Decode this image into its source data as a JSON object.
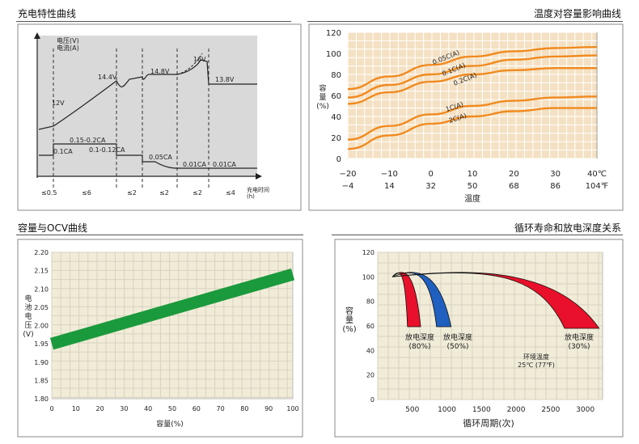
{
  "titles": {
    "charge": "充电特性曲线",
    "temp": "温度对容量影响曲线",
    "ocv": "容量与OCV曲线",
    "cycle": "循环寿命和放电深度关系"
  },
  "chart_data": [
    {
      "type": "line",
      "title": "充电特性曲线",
      "ylabel": "电压(V)\n电流(A)",
      "xlabel": "充电时间(h)",
      "voltage_labels": [
        "12V",
        "14.4V",
        "14.8V",
        "16V",
        "13.8V"
      ],
      "current_labels": [
        "0.1CA",
        "0.15-0.2CA",
        "0.1-0.12CA",
        "0.05CA",
        "0.01CA",
        "0.01CA"
      ],
      "x_tick_labels": [
        "≤0.5",
        "≤6",
        "≤2",
        "≤2",
        "≤2",
        "≤4"
      ]
    },
    {
      "type": "line",
      "title": "温度对容量影响曲线",
      "ylabel": "容量(%)",
      "xlabel": "温度",
      "x": [
        -20,
        -10,
        0,
        10,
        20,
        30,
        40
      ],
      "x_tick_labels_c": [
        "−20",
        "−10",
        "0",
        "10",
        "20",
        "30",
        "40℃"
      ],
      "x_tick_labels_f": [
        "−4",
        "14",
        "32",
        "50",
        "68",
        "86",
        "104℉"
      ],
      "ylim": [
        0,
        120
      ],
      "y_ticks": [
        0,
        20,
        40,
        60,
        80,
        100,
        120
      ],
      "line_color": "#f08a1e",
      "series": [
        {
          "name": "0.05C(A)",
          "values": [
            66,
            78,
            89,
            97,
            102,
            105,
            106
          ]
        },
        {
          "name": "0.1C(A)",
          "values": [
            58,
            70,
            80,
            88,
            94,
            97,
            98
          ]
        },
        {
          "name": "0.2C(A)",
          "values": [
            52,
            63,
            73,
            80,
            84,
            86,
            86
          ]
        },
        {
          "name": "1C(A)",
          "values": [
            18,
            31,
            42,
            50,
            55,
            58,
            59
          ]
        },
        {
          "name": "2C(A)",
          "values": [
            9,
            22,
            33,
            40,
            45,
            48,
            48
          ]
        }
      ]
    },
    {
      "type": "line",
      "title": "容量与OCV曲线",
      "ylabel": "电池电压(V)",
      "xlabel": "容量(%)",
      "x": [
        0,
        100
      ],
      "series": [
        {
          "values": [
            1.95,
            2.14
          ]
        }
      ],
      "xlim": [
        0,
        100
      ],
      "ylim": [
        1.8,
        2.2
      ],
      "x_ticks": [
        "0",
        "10",
        "20",
        "30",
        "40",
        "50",
        "60",
        "70",
        "80",
        "90",
        "100"
      ],
      "y_ticks": [
        "1.80",
        "1.85",
        "1.90",
        "1.95",
        "2.00",
        "2.05",
        "2.10",
        "2.15",
        "2.20"
      ],
      "line_color": "#1a9a3c"
    },
    {
      "type": "area",
      "title": "循环寿命和放电深度关系",
      "ylabel": "容量(%)",
      "xlabel": "循环周期(次)",
      "xlim": [
        0,
        3250
      ],
      "ylim": [
        0,
        120
      ],
      "x_ticks": [
        "500",
        "1000",
        "1500",
        "2000",
        "2500",
        "3000"
      ],
      "y_ticks": [
        "0",
        "20",
        "40",
        "60",
        "80",
        "100",
        "120"
      ],
      "series": [
        {
          "label": "放电深度\n(80%)",
          "color": "#e8102a",
          "start_cycles": 430,
          "end_cycles": 620
        },
        {
          "label": "放电深度\n(50%)",
          "color": "#1f5fbf",
          "start_cycles": 850,
          "end_cycles": 1060
        },
        {
          "label": "放电深度\n(30%)",
          "color": "#e8102a",
          "start_cycles": 2700,
          "end_cycles": 3200
        }
      ],
      "annotation": "环境温度\n25℃ (77℉)"
    }
  ]
}
